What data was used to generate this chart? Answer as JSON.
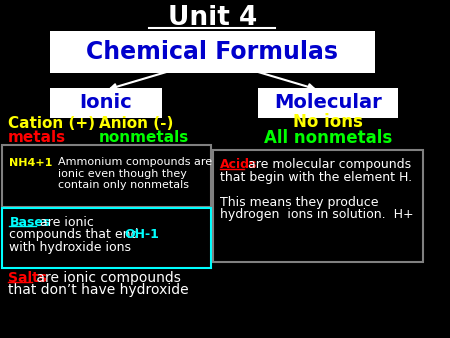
{
  "bg_color": "#000000",
  "title": "Unit 4",
  "title_color": "#ffffff",
  "subtitle": "Chemical Formulas",
  "subtitle_color": "#0000cc",
  "subtitle_bg": "#ffffff",
  "ionic_label": "Ionic",
  "ionic_color": "#0000cc",
  "ionic_bg": "#ffffff",
  "molecular_label": "Molecular",
  "molecular_color": "#0000cc",
  "molecular_bg": "#ffffff",
  "cation_text": "Cation (+)",
  "cation_color": "#ffff00",
  "anion_text": "Anion (-)",
  "anion_color": "#ffff00",
  "metals_text": "metals",
  "metals_color": "#ff0000",
  "nonmetals_text": "nonmetals",
  "nonmetals_color": "#00ff00",
  "noions_text": "No ions",
  "noions_color": "#ffff00",
  "allnonmetals_text": "All nonmetals",
  "allnonmetals_color": "#00ff00",
  "box1_border": "#808080",
  "nh4_text": "NH4+1",
  "nh4_color": "#ffff00",
  "ammonium_text": "Ammonium compounds are\nionic even though they\ncontain only nonmetals",
  "ammonium_color": "#ffffff",
  "box2_border": "#00ffff",
  "bases_text": "Bases",
  "bases_color": "#00ffff",
  "bases_rest1": " are ionic",
  "bases_rest2": "compounds that end  ",
  "bases_rest_color": "#ffffff",
  "oh_text": "OH-1",
  "oh_color": "#00ffff",
  "hydroxide_text": "with hydroxide ions",
  "hydroxide_color": "#ffffff",
  "salts_text": "Salts",
  "salts_color": "#ff0000",
  "salts_rest": " are ionic compounds",
  "salts_rest2": "that don’t have hydroxide",
  "salts_rest_color": "#ffffff",
  "box3_border": "#808080",
  "acids_text": "Acids",
  "acids_color": "#ff0000",
  "acids_line1": " are molecular compounds",
  "acids_line2": "that begin with the element H.",
  "acids_line3": "This means they produce",
  "acids_line4": "hydrogen  ions in solution.  H+",
  "acids_rest_color": "#ffffff"
}
